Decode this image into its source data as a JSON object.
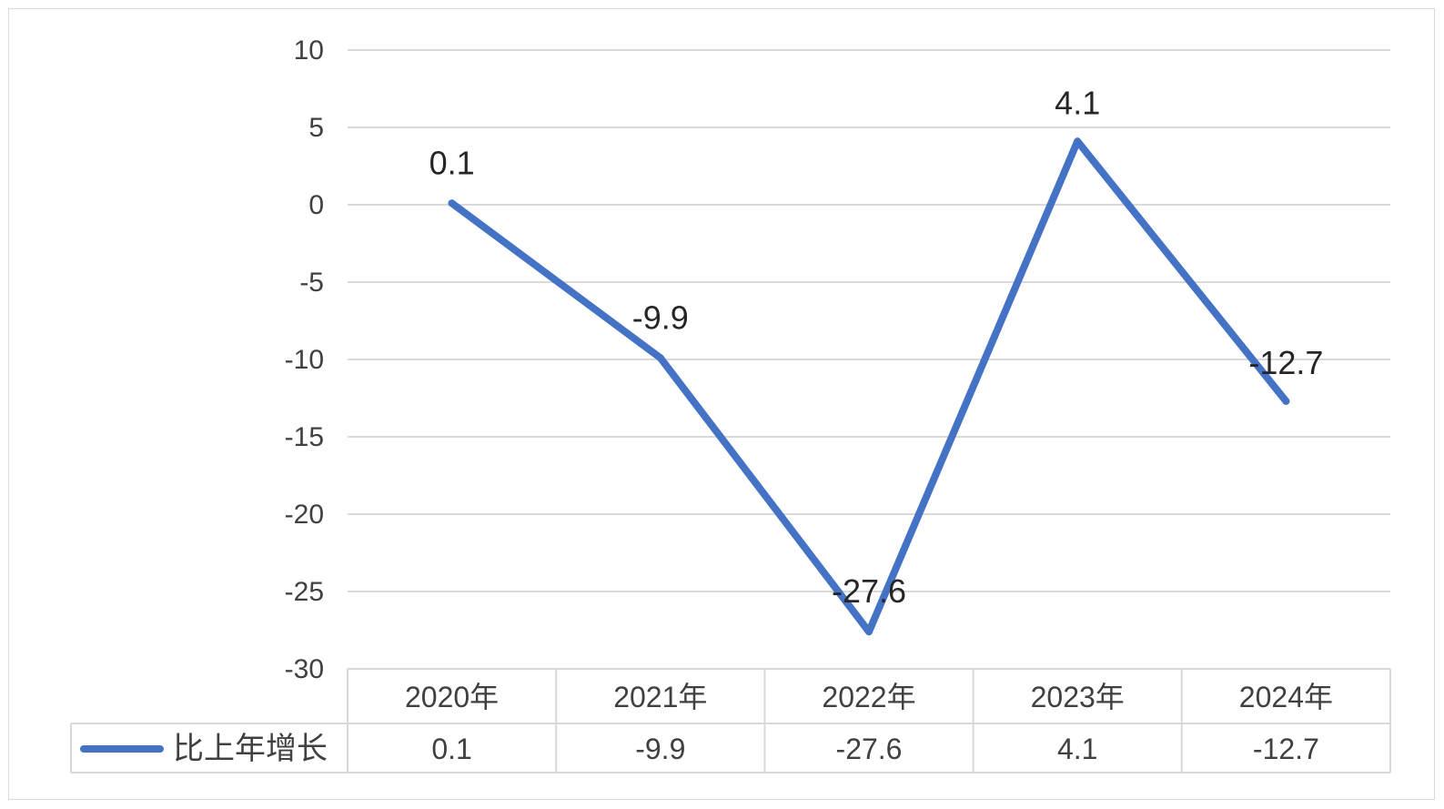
{
  "chart_data": {
    "type": "line",
    "categories": [
      "2020年",
      "2021年",
      "2022年",
      "2023年",
      "2024年"
    ],
    "series": [
      {
        "name": "比上年增长",
        "values": [
          0.1,
          -9.9,
          -27.6,
          4.1,
          -12.7
        ],
        "value_labels": [
          "0.1",
          "-9.9",
          "-27.6",
          "4.1",
          "-12.7"
        ],
        "color": "#4472c4"
      }
    ],
    "title": "",
    "xlabel": "",
    "ylabel": "",
    "ylim": [
      -30,
      10
    ],
    "yticks": [
      10,
      5,
      0,
      -5,
      -10,
      -15,
      -20,
      -25,
      -30
    ],
    "ytick_labels": [
      "10",
      "5",
      "0",
      "-5",
      "-10",
      "-15",
      "-20",
      "-25",
      "-30"
    ],
    "grid": true,
    "gridline_color": "#d9d9d9",
    "data_table": true,
    "legend_placement": "data-table-left"
  }
}
